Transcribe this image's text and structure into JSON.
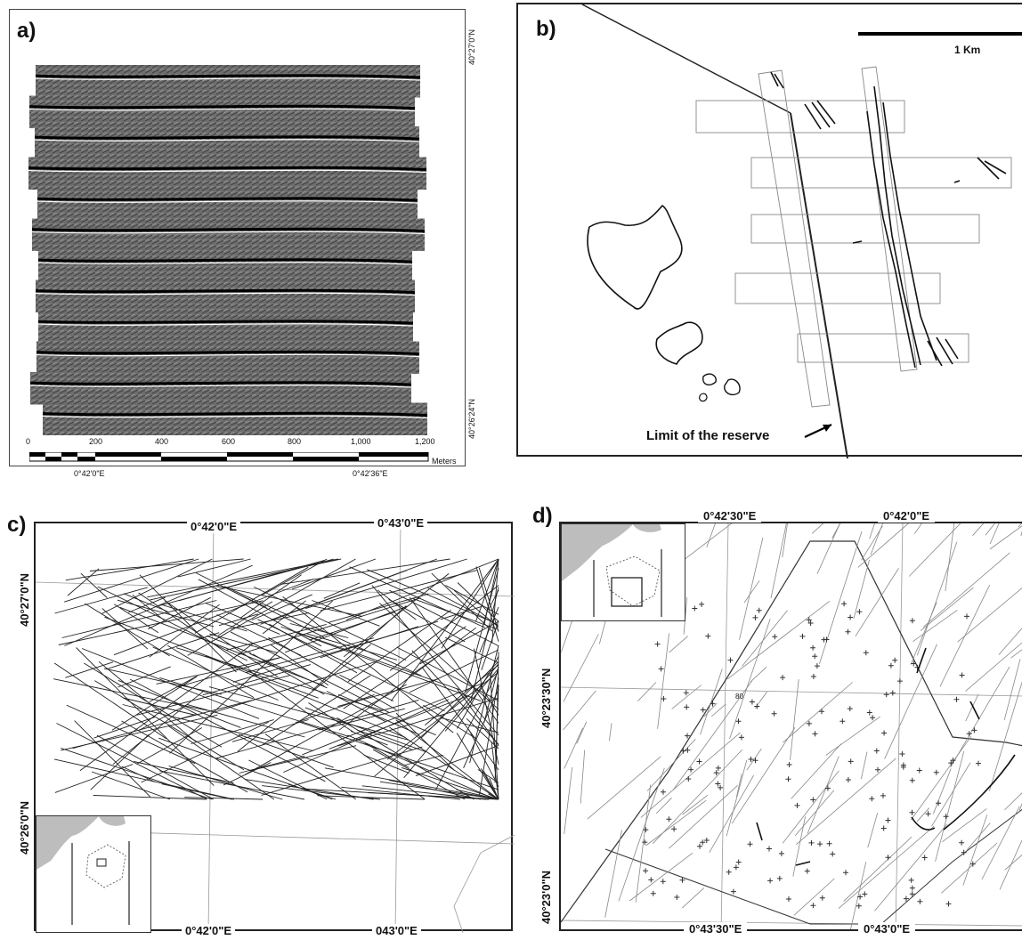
{
  "panels": {
    "a": {
      "label": "a)",
      "lat_top": "40°27'0\"N",
      "lat_bottom": "40°26'24\"N",
      "lon_left": "0°42'0\"E",
      "lon_right": "0°42'36\"E",
      "scale_ticks": [
        "0",
        "200",
        "400",
        "600",
        "800",
        "1,000",
        "1,200"
      ],
      "scale_unit": "Meters"
    },
    "b": {
      "label": "b)",
      "scale_label": "1 Km",
      "annotation": "Limit of the reserve"
    },
    "c": {
      "label": "c)",
      "top_lon_1": "0°42'0\"E",
      "top_lon_2": "0°43'0\"E",
      "bottom_lon_1": "0°42'0\"E",
      "bottom_lon_2": "043'0\"E",
      "lat_1": "40°27'0\"N",
      "lat_2": "40°26'0\"N"
    },
    "d": {
      "label": "d)",
      "top_lon_1": "0°42'30\"E",
      "top_lon_2": "0°42'0\"E",
      "bottom_lon_1": "0°43'30\"E",
      "bottom_lon_2": "0°43'0\"E",
      "lat_1": "40°23'30\"N",
      "lat_2": "40°23'0\"N",
      "contour_label": "80"
    }
  },
  "colors": {
    "ink": "#111111",
    "sonar_dark": "#3a3a3a",
    "sonar_light": "#8a8a8a",
    "land": "#bdbdbd"
  }
}
